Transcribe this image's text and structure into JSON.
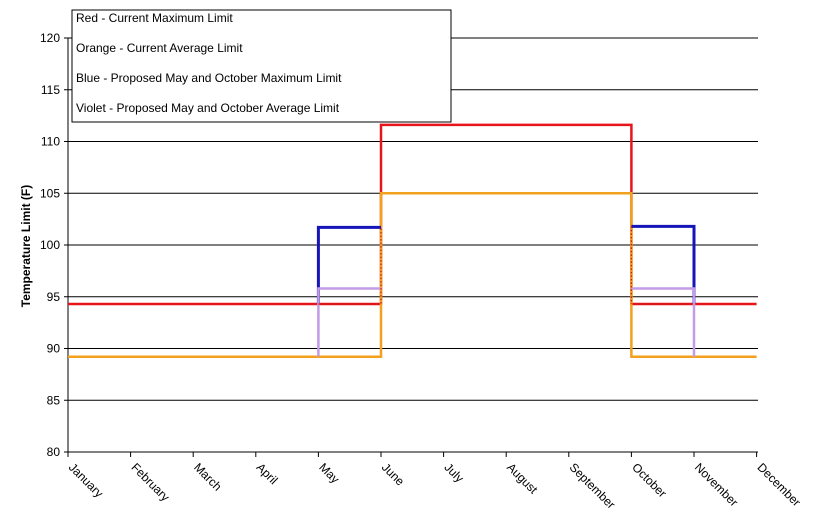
{
  "chart_data": {
    "type": "line",
    "ylabel": "Temperature Limit (F)",
    "ylim": [
      80,
      120
    ],
    "yticks": [
      80,
      85,
      90,
      95,
      100,
      105,
      110,
      115,
      120
    ],
    "grid": "horizontal",
    "categories": [
      "January",
      "February",
      "March",
      "April",
      "May",
      "June",
      "July",
      "August",
      "September",
      "October",
      "November",
      "December"
    ],
    "legend": {
      "placement": "top-left",
      "entries": [
        "Red - Current Maximum Limit",
        "Orange - Current Average Limit",
        "Blue - Proposed May and October Maximum Limit",
        "Violet - Proposed May and October Average Limit"
      ]
    },
    "series": [
      {
        "key": "current-max",
        "color": "#e8141b",
        "width": 2.5,
        "dash": "",
        "points": [
          [
            0,
            94.3
          ],
          [
            4,
            94.3
          ],
          [
            5,
            94.3
          ],
          [
            5,
            111.6
          ],
          [
            9,
            111.6
          ],
          [
            9,
            94.3
          ],
          [
            10,
            94.3
          ],
          [
            11,
            94.3
          ]
        ]
      },
      {
        "key": "current-avg",
        "color": "#f2a01e",
        "width": 2.5,
        "dash": "",
        "points": [
          [
            0,
            89.2
          ],
          [
            4,
            89.2
          ],
          [
            5,
            89.2
          ],
          [
            5,
            105.0
          ],
          [
            9,
            105.0
          ],
          [
            9,
            89.2
          ],
          [
            10,
            89.2
          ],
          [
            11,
            89.2
          ]
        ]
      },
      {
        "key": "proposed-max",
        "color": "#1616b8",
        "width": 3,
        "dash": "",
        "points": [
          [
            4,
            94.3
          ],
          [
            4,
            101.7
          ],
          [
            5,
            101.7
          ]
        ]
      },
      {
        "key": "proposed-max-oct",
        "color": "#1616b8",
        "width": 3,
        "dash": "",
        "points": [
          [
            9,
            101.8
          ],
          [
            10,
            101.8
          ],
          [
            10,
            94.3
          ]
        ]
      },
      {
        "key": "proposed-avg",
        "color": "#c49be6",
        "width": 2.5,
        "dash": "",
        "points": [
          [
            4,
            89.2
          ],
          [
            4,
            95.8
          ],
          [
            5,
            95.8
          ]
        ]
      },
      {
        "key": "proposed-avg-oct",
        "color": "#c49be6",
        "width": 2.5,
        "dash": "",
        "points": [
          [
            9,
            95.8
          ],
          [
            10,
            95.8
          ],
          [
            10,
            89.2
          ]
        ]
      },
      {
        "key": "current-max-may-dotted",
        "color": "#c01a1a",
        "width": 1.2,
        "dash": "1.5,2",
        "points": [
          [
            4,
            94.3
          ],
          [
            5,
            94.3
          ],
          [
            5,
            101.7
          ]
        ]
      },
      {
        "key": "current-max-oct-dotted",
        "color": "#c01a1a",
        "width": 1.2,
        "dash": "1.5,2",
        "points": [
          [
            9,
            101.8
          ],
          [
            9,
            94.3
          ],
          [
            10,
            94.3
          ]
        ]
      },
      {
        "key": "current-avg-may-dotted",
        "color": "#f2a01e",
        "width": 1.2,
        "dash": "1.5,2",
        "points": [
          [
            4,
            89.2
          ],
          [
            5,
            89.2
          ],
          [
            5,
            94.3
          ]
        ]
      },
      {
        "key": "current-avg-oct-dotted",
        "color": "#f2a01e",
        "width": 1.2,
        "dash": "1.5,2",
        "points": [
          [
            9,
            94.3
          ],
          [
            9,
            89.2
          ],
          [
            10,
            89.2
          ]
        ]
      }
    ]
  }
}
